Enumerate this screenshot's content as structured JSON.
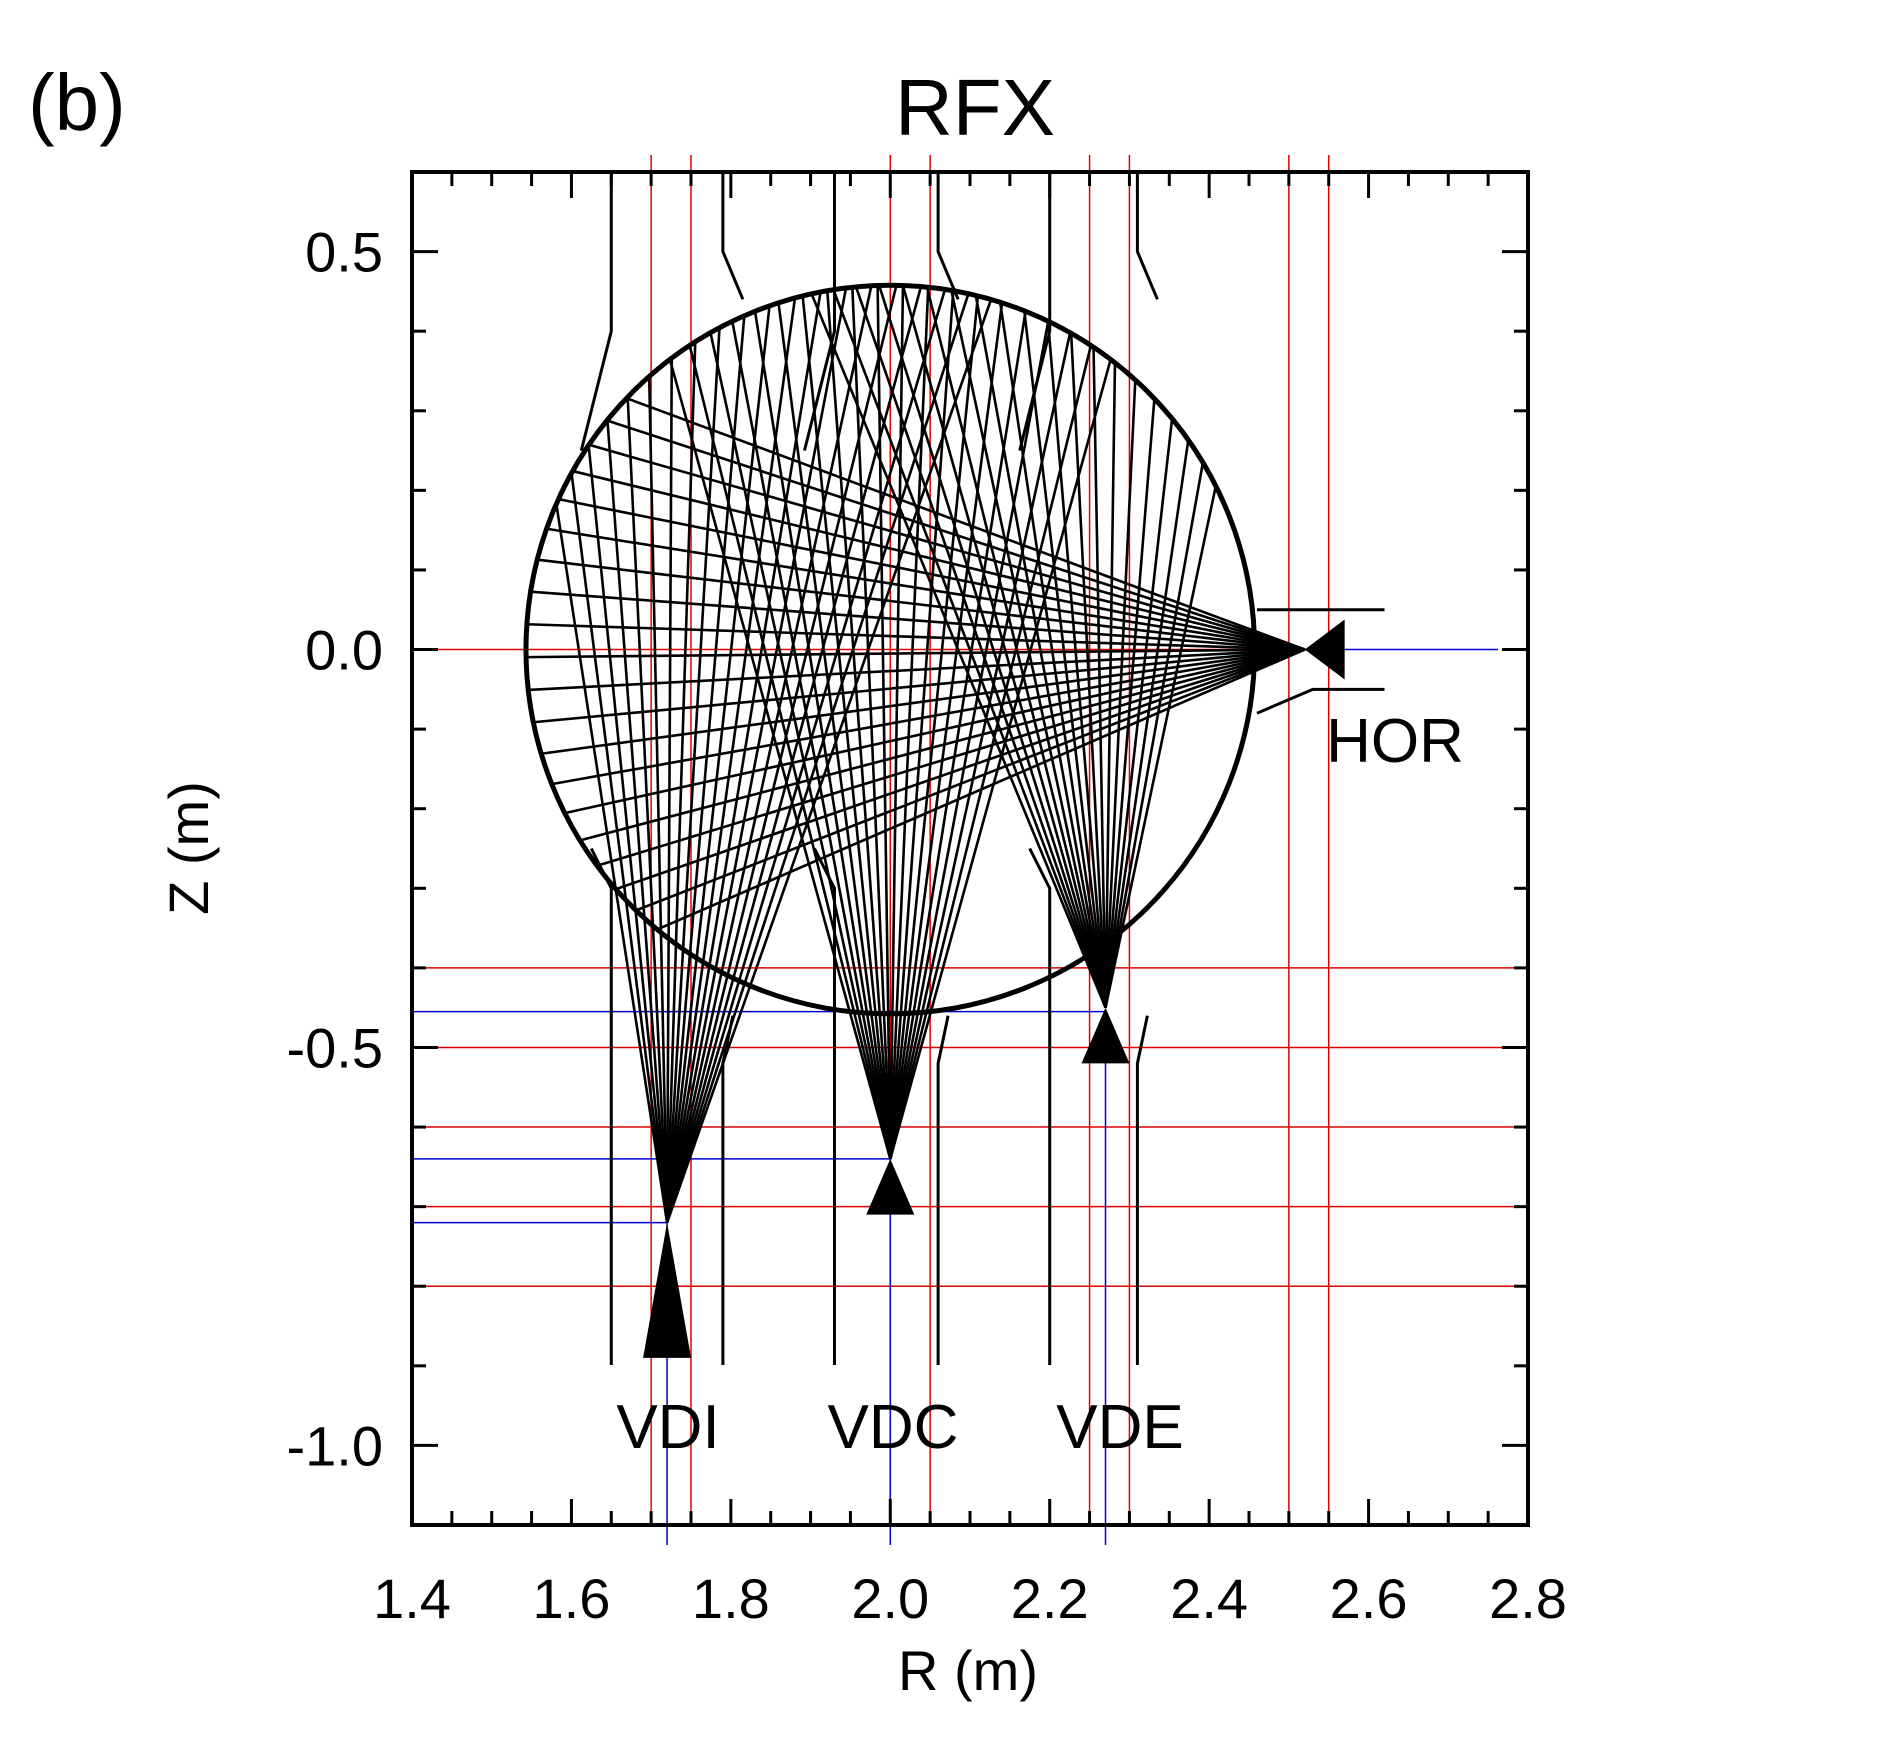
{
  "panel_label": "(b)",
  "title": "RFX",
  "x_axis": {
    "label": "R (m)",
    "range": [
      1.4,
      2.8
    ],
    "ticks": [
      1.4,
      1.6,
      1.8,
      2.0,
      2.2,
      2.4,
      2.6,
      2.8
    ],
    "tick_labels": [
      "1.4",
      "1.6",
      "1.8",
      "2.0",
      "2.2",
      "2.4",
      "2.6",
      "2.8"
    ]
  },
  "y_axis": {
    "label": "Z (m)",
    "range": [
      -1.1,
      0.6
    ],
    "ticks": [
      0.5,
      0.0,
      -0.5,
      -1.0
    ],
    "tick_labels": [
      "0.5",
      "0.0",
      "-0.5",
      "-1.0"
    ]
  },
  "vessel": {
    "center_R": 2.0,
    "center_Z": 0.0,
    "radius": 0.457
  },
  "cameras": [
    {
      "name": "VDI",
      "pinhole": [
        1.72,
        -0.72
      ],
      "detector_z": -0.89,
      "fan_from_R": 1.54,
      "fan_to_R": 2.13,
      "label": "VDI"
    },
    {
      "name": "VDC",
      "pinhole": [
        2.0,
        -0.64
      ],
      "detector_z": -0.71,
      "fan_from_R": 1.7,
      "fan_to_R": 2.3,
      "label": "VDC"
    },
    {
      "name": "VDE",
      "pinhole": [
        2.27,
        -0.45
      ],
      "detector_z": -0.52,
      "fan_from_R": 1.9,
      "fan_to_R": 2.46,
      "label": "VDE"
    },
    {
      "name": "HOR",
      "pinhole": [
        2.52,
        0.0
      ],
      "detector_R": 2.57,
      "fan_from_Z": 0.36,
      "fan_to_Z": -0.42,
      "label": "HOR"
    }
  ],
  "colors": {
    "lines": "#000000",
    "red_guides": "#e00000",
    "blue_guides": "#0000d0"
  }
}
